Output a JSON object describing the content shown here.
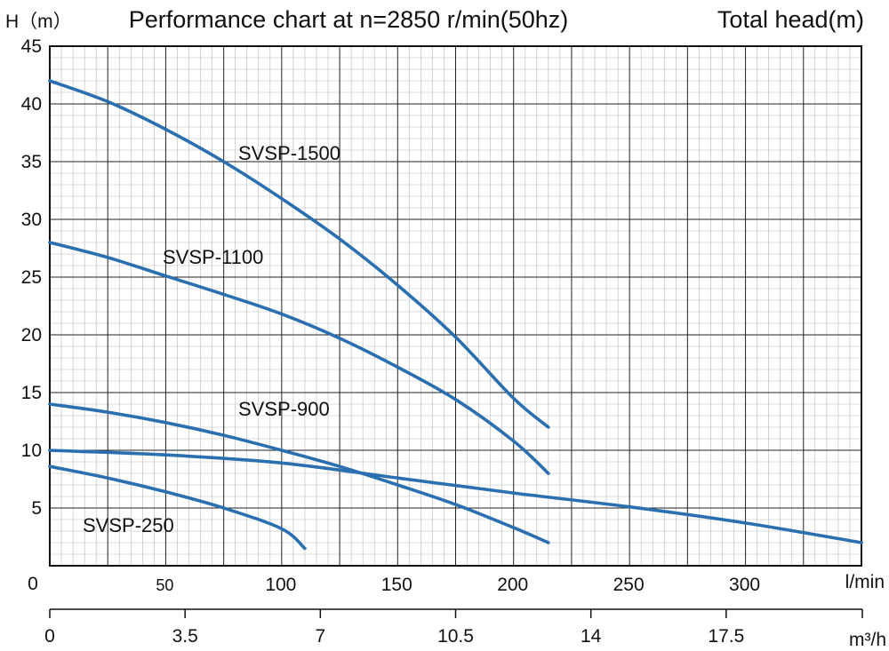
{
  "chart_data": {
    "type": "line",
    "title": "Performance chart at n=2850 r/min(50hz)",
    "ylabel": "H（m）",
    "ylabel_right": "Total head(m)",
    "xlabel": "l/min",
    "xlabel2": "m³/h",
    "xlim": [
      0,
      350
    ],
    "ylim": [
      0,
      45
    ],
    "grid": true,
    "y_ticks": [
      "45",
      "40",
      "35",
      "30",
      "25",
      "20",
      "15",
      "10",
      "5"
    ],
    "y_tick_values": [
      45,
      40,
      35,
      30,
      25,
      20,
      15,
      10,
      5
    ],
    "y_origin_label": "0",
    "x_ticks": [
      "50",
      "100",
      "150",
      "200",
      "250",
      "300"
    ],
    "x_tick_values": [
      50,
      100,
      150,
      200,
      250,
      300
    ],
    "x2_ticks": [
      "0",
      "3.5",
      "7",
      "10.5",
      "14",
      "17.5"
    ],
    "x2_tick_values": [
      0,
      3.5,
      7,
      10.5,
      14,
      17.5
    ],
    "line_color": "#2a6fb0",
    "series": [
      {
        "name": "SVSP-1500",
        "x": [
          0,
          25,
          50,
          75,
          100,
          125,
          150,
          175,
          200,
          215
        ],
        "y": [
          42,
          40.2,
          37.8,
          35,
          31.8,
          28.3,
          24.3,
          19.8,
          14.5,
          12
        ]
      },
      {
        "name": "SVSP-1100",
        "x": [
          0,
          25,
          50,
          75,
          100,
          125,
          150,
          175,
          200,
          215
        ],
        "y": [
          28,
          26.7,
          25.1,
          23.5,
          21.8,
          19.7,
          17.2,
          14.4,
          10.8,
          8
        ]
      },
      {
        "name": "SVSP-900",
        "x": [
          0,
          25,
          50,
          75,
          100,
          125,
          150,
          175,
          200,
          215
        ],
        "y": [
          14,
          13.3,
          12.4,
          11.3,
          10,
          8.6,
          7,
          5.3,
          3.3,
          2
        ]
      },
      {
        "name": "SVSP-250",
        "x": [
          0,
          25,
          50,
          75,
          100,
          110
        ],
        "y": [
          8.6,
          7.6,
          6.4,
          5,
          3.2,
          1.5
        ]
      },
      {
        "name": "",
        "x": [
          0,
          50,
          100,
          150,
          200,
          250,
          300,
          350
        ],
        "y": [
          10,
          9.6,
          8.9,
          7.6,
          6.3,
          5.1,
          3.7,
          2
        ]
      }
    ]
  }
}
